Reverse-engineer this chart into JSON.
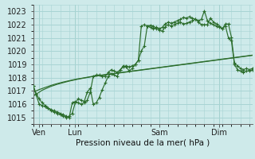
{
  "xlabel": "Pression niveau de la mer( hPa )",
  "ylim": [
    1014.5,
    1023.5
  ],
  "yticks": [
    1015,
    1016,
    1017,
    1018,
    1019,
    1020,
    1021,
    1022,
    1023
  ],
  "bg_color": "#ceeaea",
  "grid_color": "#a8d4d4",
  "line_color": "#2d6e2d",
  "xtick_labels": [
    "Ven",
    "Lun",
    "Sam",
    "Dim"
  ],
  "xtick_positions": [
    2,
    14,
    42,
    62
  ],
  "vline_positions": [
    2,
    14,
    42,
    62
  ],
  "n_points": 74,
  "line1_y": [
    1017.4,
    1016.8,
    1016.4,
    1016.1,
    1015.9,
    1015.7,
    1015.5,
    1015.4,
    1015.3,
    1015.2,
    1015.1,
    1015.0,
    1015.1,
    1015.3,
    1016.1,
    1016.4,
    1016.3,
    1016.2,
    1016.9,
    1017.2,
    1016.0,
    1016.1,
    1016.5,
    1017.1,
    1017.6,
    1018.1,
    1018.3,
    1018.2,
    1018.1,
    1018.6,
    1018.9,
    1018.8,
    1018.5,
    1018.7,
    1019.0,
    1019.3,
    1020.0,
    1020.4,
    1021.9,
    1021.95,
    1021.9,
    1021.7,
    1021.6,
    1021.5,
    1021.85,
    1022.0,
    1021.9,
    1022.0,
    1022.1,
    1022.2,
    1022.05,
    1022.1,
    1022.2,
    1022.3,
    1022.4,
    1022.2,
    1022.0,
    1022.0,
    1022.0,
    1022.5,
    1022.2,
    1022.05,
    1021.9,
    1021.7,
    1021.9,
    1021.0,
    1020.8,
    1019.0,
    1018.6,
    1018.5,
    1018.4,
    1018.5,
    1018.5,
    1018.6
  ],
  "line2_y": [
    1017.4,
    1016.7,
    1016.0,
    1015.9,
    1015.8,
    1015.7,
    1015.6,
    1015.5,
    1015.4,
    1015.3,
    1015.2,
    1015.1,
    1015.0,
    1016.1,
    1016.2,
    1016.1,
    1016.0,
    1016.1,
    1016.3,
    1016.9,
    1018.1,
    1018.2,
    1018.2,
    1018.1,
    1018.1,
    1018.4,
    1018.6,
    1018.5,
    1018.4,
    1018.6,
    1018.8,
    1018.9,
    1018.8,
    1018.9,
    1019.0,
    1019.3,
    1021.9,
    1022.0,
    1021.9,
    1021.8,
    1021.7,
    1021.8,
    1021.7,
    1021.8,
    1022.05,
    1022.2,
    1022.1,
    1022.2,
    1022.3,
    1022.4,
    1022.55,
    1022.5,
    1022.6,
    1022.5,
    1022.4,
    1022.3,
    1022.4,
    1023.05,
    1022.3,
    1022.1,
    1022.0,
    1021.9,
    1021.8,
    1021.7,
    1022.05,
    1022.05,
    1021.05,
    1019.1,
    1018.9,
    1018.7,
    1018.6,
    1018.7,
    1018.6,
    1018.7
  ],
  "line3_y": [
    1016.6,
    1016.75,
    1016.9,
    1017.05,
    1017.15,
    1017.25,
    1017.35,
    1017.42,
    1017.5,
    1017.56,
    1017.62,
    1017.68,
    1017.74,
    1017.79,
    1017.84,
    1017.89,
    1017.93,
    1017.97,
    1018.01,
    1018.05,
    1018.09,
    1018.12,
    1018.15,
    1018.18,
    1018.21,
    1018.24,
    1018.27,
    1018.3,
    1018.33,
    1018.36,
    1018.39,
    1018.42,
    1018.45,
    1018.48,
    1018.51,
    1018.54,
    1018.57,
    1018.6,
    1018.63,
    1018.66,
    1018.69,
    1018.72,
    1018.75,
    1018.78,
    1018.81,
    1018.84,
    1018.87,
    1018.9,
    1018.93,
    1018.96,
    1018.99,
    1019.02,
    1019.05,
    1019.08,
    1019.11,
    1019.14,
    1019.17,
    1019.2,
    1019.23,
    1019.26,
    1019.29,
    1019.32,
    1019.35,
    1019.38,
    1019.41,
    1019.44,
    1019.47,
    1019.5,
    1019.53,
    1019.56,
    1019.59,
    1019.62,
    1019.65,
    1019.68
  ],
  "line4_y": [
    1016.9,
    1017.0,
    1017.1,
    1017.18,
    1017.26,
    1017.34,
    1017.42,
    1017.49,
    1017.55,
    1017.61,
    1017.67,
    1017.72,
    1017.77,
    1017.82,
    1017.87,
    1017.91,
    1017.95,
    1017.99,
    1018.03,
    1018.07,
    1018.11,
    1018.14,
    1018.17,
    1018.2,
    1018.23,
    1018.26,
    1018.29,
    1018.32,
    1018.35,
    1018.38,
    1018.41,
    1018.44,
    1018.47,
    1018.5,
    1018.53,
    1018.56,
    1018.59,
    1018.62,
    1018.65,
    1018.68,
    1018.71,
    1018.74,
    1018.77,
    1018.8,
    1018.83,
    1018.86,
    1018.89,
    1018.92,
    1018.95,
    1018.98,
    1019.01,
    1019.04,
    1019.07,
    1019.1,
    1019.13,
    1019.16,
    1019.19,
    1019.22,
    1019.25,
    1019.28,
    1019.31,
    1019.34,
    1019.37,
    1019.4,
    1019.43,
    1019.46,
    1019.49,
    1019.52,
    1019.55,
    1019.58,
    1019.61,
    1019.64,
    1019.67,
    1019.7
  ]
}
